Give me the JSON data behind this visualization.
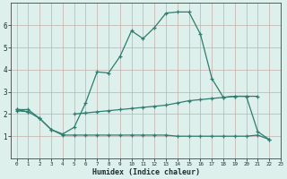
{
  "xlabel": "Humidex (Indice chaleur)",
  "x": [
    0,
    1,
    2,
    3,
    4,
    5,
    6,
    7,
    8,
    9,
    10,
    11,
    12,
    13,
    14,
    15,
    16,
    17,
    18,
    19,
    20,
    21,
    22,
    23
  ],
  "line1": [
    2.2,
    2.2,
    1.8,
    1.3,
    1.1,
    1.4,
    2.5,
    3.9,
    3.85,
    4.6,
    5.75,
    5.4,
    5.9,
    6.55,
    6.6,
    6.6,
    5.6,
    3.6,
    2.75,
    2.8,
    2.8,
    1.2,
    0.85,
    null
  ],
  "line2": [
    2.2,
    2.1,
    1.8,
    1.3,
    1.05,
    1.05,
    1.05,
    1.05,
    1.05,
    1.05,
    1.05,
    1.05,
    1.05,
    1.05,
    1.0,
    1.0,
    1.0,
    1.0,
    1.0,
    1.0,
    1.0,
    1.05,
    0.85,
    null
  ],
  "line3": [
    2.15,
    2.1,
    null,
    null,
    null,
    2.0,
    2.05,
    2.1,
    2.15,
    2.2,
    2.25,
    2.3,
    2.35,
    2.4,
    2.5,
    2.6,
    2.65,
    2.7,
    2.75,
    2.8,
    2.8,
    2.8,
    null,
    null
  ],
  "line_color": "#2e7d6e",
  "bg_color": "#ddf0ec",
  "grid_color": "#c4aeae",
  "ylim": [
    0,
    7
  ],
  "xlim": [
    -0.5,
    23
  ],
  "yticks": [
    1,
    2,
    3,
    4,
    5,
    6
  ],
  "xticks": [
    0,
    1,
    2,
    3,
    4,
    5,
    6,
    7,
    8,
    9,
    10,
    11,
    12,
    13,
    14,
    15,
    16,
    17,
    18,
    19,
    20,
    21,
    22,
    23
  ]
}
